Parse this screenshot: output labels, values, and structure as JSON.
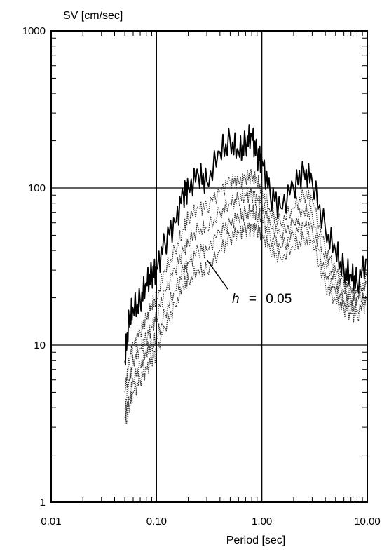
{
  "chart_data": {
    "type": "line",
    "title": "",
    "ylabel": "SV [cm/sec]",
    "xlabel": "Period [sec]",
    "x_scale": "log",
    "y_scale": "log",
    "xlim": [
      0.01,
      10
    ],
    "ylim": [
      1,
      1000
    ],
    "grid": true,
    "x_tick_labels": [
      "0.01",
      "0.10",
      "1.00",
      "10.00"
    ],
    "x_ticks": [
      0.01,
      0.1,
      1,
      10
    ],
    "y_tick_labels": [
      "1",
      "10",
      "100",
      "1000"
    ],
    "y_ticks": [
      1,
      10,
      100,
      1000
    ],
    "annotation": {
      "variable": "h",
      "equals": "=",
      "value": "0.05",
      "at_x": 0.3,
      "at_y": 35
    },
    "series": [
      {
        "style": "solid",
        "color": "#000000",
        "x": [
          0.05,
          0.055,
          0.06,
          0.07,
          0.08,
          0.09,
          0.1,
          0.12,
          0.15,
          0.18,
          0.2,
          0.25,
          0.3,
          0.4,
          0.5,
          0.6,
          0.7,
          0.8,
          0.9,
          1.0,
          1.2,
          1.5,
          2.0,
          2.5,
          3.0,
          4.0,
          5.0,
          6.0,
          7.0,
          8.0,
          10.0
        ],
        "y": [
          8,
          15,
          17,
          19,
          25,
          28,
          30,
          45,
          60,
          90,
          100,
          120,
          110,
          170,
          200,
          170,
          190,
          220,
          160,
          150,
          90,
          75,
          100,
          130,
          110,
          55,
          40,
          30,
          28,
          25,
          35
        ]
      },
      {
        "style": "dotted",
        "color": "#333333",
        "x": [
          0.05,
          0.055,
          0.06,
          0.07,
          0.08,
          0.09,
          0.1,
          0.12,
          0.15,
          0.18,
          0.2,
          0.25,
          0.3,
          0.4,
          0.5,
          0.6,
          0.7,
          0.8,
          0.9,
          1.0,
          1.2,
          1.5,
          2.0,
          2.5,
          3.0,
          4.0,
          5.0,
          6.0,
          7.0,
          8.0,
          10.0
        ],
        "y": [
          5,
          8,
          10,
          12,
          15,
          18,
          20,
          30,
          40,
          55,
          65,
          75,
          75,
          95,
          110,
          110,
          115,
          120,
          110,
          100,
          70,
          60,
          75,
          90,
          85,
          40,
          30,
          25,
          23,
          21,
          27
        ]
      },
      {
        "style": "dotted",
        "color": "#333333",
        "x": [
          0.05,
          0.055,
          0.06,
          0.07,
          0.08,
          0.09,
          0.1,
          0.12,
          0.15,
          0.18,
          0.2,
          0.25,
          0.3,
          0.4,
          0.5,
          0.6,
          0.7,
          0.8,
          0.9,
          1.0,
          1.2,
          1.5,
          2.0,
          2.5,
          3.0,
          4.0,
          5.0,
          6.0,
          7.0,
          8.0,
          10.0
        ],
        "y": [
          4,
          6,
          8,
          9.5,
          11,
          13,
          15,
          22,
          30,
          40,
          45,
          55,
          55,
          70,
          80,
          85,
          90,
          90,
          85,
          80,
          58,
          50,
          60,
          72,
          68,
          34,
          26,
          22,
          20,
          19,
          24
        ]
      },
      {
        "style": "dotted",
        "color": "#333333",
        "x": [
          0.05,
          0.055,
          0.06,
          0.07,
          0.08,
          0.09,
          0.1,
          0.12,
          0.15,
          0.18,
          0.2,
          0.25,
          0.3,
          0.4,
          0.5,
          0.6,
          0.7,
          0.8,
          0.9,
          1.0,
          1.2,
          1.5,
          2.0,
          2.5,
          3.0,
          4.0,
          5.0,
          6.0,
          7.0,
          8.0,
          10.0
        ],
        "y": [
          3.5,
          4.5,
          6,
          7.5,
          9,
          10,
          11,
          16,
          22,
          30,
          33,
          40,
          40,
          52,
          60,
          65,
          70,
          70,
          68,
          65,
          48,
          42,
          50,
          58,
          55,
          28,
          22,
          19,
          18,
          17,
          21
        ]
      },
      {
        "style": "dotted",
        "color": "#333333",
        "x": [
          0.05,
          0.055,
          0.06,
          0.07,
          0.08,
          0.09,
          0.1,
          0.12,
          0.15,
          0.18,
          0.2,
          0.25,
          0.3,
          0.4,
          0.5,
          0.6,
          0.7,
          0.8,
          0.9,
          1.0,
          1.2,
          1.5,
          2.0,
          2.5,
          3.0,
          4.0,
          5.0,
          6.0,
          7.0,
          8.0,
          10.0
        ],
        "y": [
          3.2,
          4,
          5,
          6,
          7,
          8,
          9,
          13,
          18,
          24,
          26,
          30,
          30,
          40,
          48,
          52,
          55,
          55,
          54,
          52,
          40,
          36,
          42,
          48,
          46,
          24,
          19,
          17,
          16,
          15.5,
          19
        ]
      }
    ]
  }
}
